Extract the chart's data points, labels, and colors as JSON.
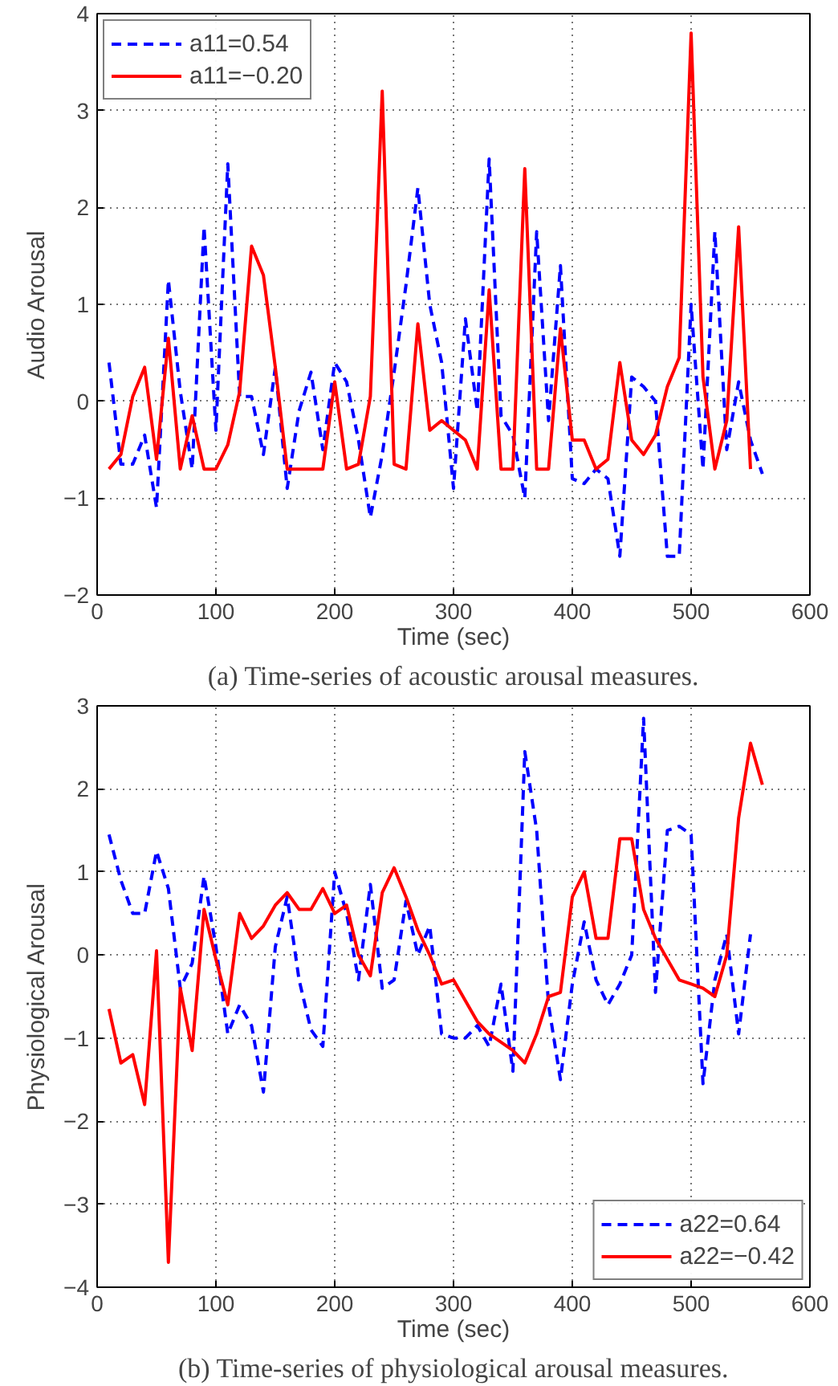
{
  "chart_data": [
    {
      "type": "line",
      "xlabel": "Time (sec)",
      "ylabel": "Audio Arousal",
      "annotations": [
        "(a) Time-series of acoustic arousal measures."
      ],
      "xlim": [
        0,
        600
      ],
      "ylim": [
        -2,
        4
      ],
      "xticks": [
        0,
        100,
        200,
        300,
        400,
        500,
        600
      ],
      "yticks": [
        -2,
        -1,
        0,
        1,
        2,
        3,
        4
      ],
      "grid": true,
      "legend": "top left",
      "series": [
        {
          "name": "a11=0.54",
          "color": "#0000ff",
          "line_style": "dashed",
          "x": [
            10,
            20,
            30,
            40,
            50,
            60,
            70,
            80,
            90,
            100,
            110,
            120,
            130,
            140,
            150,
            160,
            170,
            180,
            190,
            200,
            210,
            220,
            230,
            240,
            250,
            260,
            270,
            280,
            290,
            300,
            310,
            320,
            330,
            340,
            350,
            360,
            370,
            380,
            390,
            400,
            410,
            420,
            430,
            440,
            450,
            460,
            470,
            480,
            490,
            500,
            510,
            520,
            530,
            540,
            550,
            560
          ],
          "values": [
            0.4,
            -0.65,
            -0.65,
            -0.35,
            -1.1,
            1.25,
            0.1,
            -0.7,
            1.8,
            -0.3,
            2.45,
            0.05,
            0.05,
            -0.55,
            0.35,
            -0.9,
            -0.1,
            0.3,
            -0.5,
            0.4,
            0.2,
            -0.4,
            -1.2,
            -0.55,
            0.3,
            1.2,
            2.2,
            1.0,
            0.4,
            -0.9,
            0.85,
            -0.1,
            2.5,
            -0.15,
            -0.35,
            -1.0,
            1.75,
            -0.2,
            1.4,
            -0.8,
            -0.85,
            -0.7,
            -0.8,
            -1.6,
            0.25,
            0.15,
            0.0,
            -1.6,
            -1.6,
            1.0,
            -0.7,
            1.75,
            -0.5,
            0.2,
            -0.4,
            -0.75
          ]
        },
        {
          "name": "a11=−0.20",
          "color": "#ff0000",
          "line_style": "solid",
          "x": [
            10,
            20,
            30,
            40,
            50,
            60,
            70,
            80,
            90,
            100,
            110,
            120,
            130,
            140,
            150,
            160,
            170,
            180,
            190,
            200,
            210,
            220,
            230,
            240,
            250,
            260,
            270,
            280,
            290,
            300,
            310,
            320,
            330,
            340,
            350,
            360,
            370,
            380,
            390,
            400,
            410,
            420,
            430,
            440,
            450,
            460,
            470,
            480,
            490,
            500,
            510,
            520,
            530,
            540,
            550
          ],
          "values": [
            -0.7,
            -0.55,
            0.05,
            0.35,
            -0.6,
            0.65,
            -0.7,
            -0.15,
            -0.7,
            -0.7,
            -0.45,
            0.1,
            1.6,
            1.3,
            0.35,
            -0.7,
            -0.7,
            -0.7,
            -0.7,
            0.2,
            -0.7,
            -0.65,
            0.05,
            3.2,
            -0.65,
            -0.7,
            0.8,
            -0.3,
            -0.2,
            -0.3,
            -0.4,
            -0.7,
            1.15,
            -0.7,
            -0.7,
            2.4,
            -0.7,
            -0.7,
            0.75,
            -0.4,
            -0.4,
            -0.7,
            -0.6,
            0.4,
            -0.4,
            -0.55,
            -0.35,
            0.15,
            0.45,
            3.8,
            0.25,
            -0.7,
            -0.2,
            1.8,
            -0.7
          ]
        }
      ]
    },
    {
      "type": "line",
      "xlabel": "Time (sec)",
      "ylabel": "Physiological Arousal",
      "annotations": [
        "(b) Time-series of physiological arousal measures."
      ],
      "xlim": [
        0,
        600
      ],
      "ylim": [
        -4,
        3
      ],
      "xticks": [
        0,
        100,
        200,
        300,
        400,
        500,
        600
      ],
      "yticks": [
        -4,
        -3,
        -2,
        -1,
        0,
        1,
        2,
        3
      ],
      "grid": true,
      "legend": "bottom right",
      "series": [
        {
          "name": "a22=0.64",
          "color": "#0000ff",
          "line_style": "dashed",
          "x": [
            10,
            20,
            30,
            40,
            50,
            60,
            70,
            80,
            90,
            100,
            110,
            120,
            130,
            140,
            150,
            160,
            170,
            180,
            190,
            200,
            210,
            220,
            230,
            240,
            250,
            260,
            270,
            280,
            290,
            300,
            310,
            320,
            330,
            340,
            350,
            360,
            370,
            380,
            390,
            400,
            410,
            420,
            430,
            440,
            450,
            460,
            470,
            480,
            490,
            500,
            510,
            520,
            530,
            540,
            550
          ],
          "values": [
            1.45,
            0.9,
            0.5,
            0.5,
            1.25,
            0.8,
            -0.4,
            -0.1,
            0.95,
            0.1,
            -0.95,
            -0.6,
            -0.85,
            -1.65,
            0.1,
            0.7,
            -0.3,
            -0.9,
            -1.1,
            1.0,
            0.5,
            -0.3,
            0.85,
            -0.4,
            -0.3,
            0.65,
            0.0,
            0.35,
            -0.95,
            -1.0,
            -1.0,
            -0.85,
            -1.1,
            -0.35,
            -1.4,
            2.45,
            1.5,
            -0.6,
            -1.5,
            -0.35,
            0.4,
            -0.3,
            -0.6,
            -0.35,
            0.0,
            2.85,
            -0.45,
            1.5,
            1.55,
            1.45,
            -1.55,
            -0.3,
            0.25,
            -0.95,
            0.25
          ]
        },
        {
          "name": "a22=−0.42",
          "color": "#ff0000",
          "line_style": "solid",
          "x": [
            10,
            20,
            30,
            40,
            50,
            60,
            70,
            80,
            90,
            100,
            110,
            120,
            130,
            140,
            150,
            160,
            170,
            180,
            190,
            200,
            210,
            220,
            230,
            240,
            250,
            260,
            270,
            280,
            290,
            300,
            310,
            320,
            330,
            340,
            350,
            360,
            370,
            380,
            390,
            400,
            410,
            420,
            430,
            440,
            450,
            460,
            470,
            480,
            490,
            500,
            510,
            520,
            530,
            540,
            550,
            560
          ],
          "values": [
            -0.65,
            -1.3,
            -1.2,
            -1.8,
            0.05,
            -3.7,
            -0.4,
            -1.15,
            0.55,
            -0.05,
            -0.6,
            0.5,
            0.2,
            0.35,
            0.6,
            0.75,
            0.55,
            0.55,
            0.8,
            0.5,
            0.6,
            0.0,
            -0.25,
            0.75,
            1.05,
            0.7,
            0.3,
            0.0,
            -0.35,
            -0.3,
            -0.55,
            -0.8,
            -0.95,
            -1.05,
            -1.15,
            -1.3,
            -0.95,
            -0.5,
            -0.45,
            0.7,
            1.0,
            0.2,
            0.2,
            1.4,
            1.4,
            0.55,
            0.2,
            -0.05,
            -0.3,
            -0.35,
            -0.4,
            -0.5,
            0.0,
            1.65,
            2.55,
            2.05
          ]
        }
      ]
    }
  ]
}
